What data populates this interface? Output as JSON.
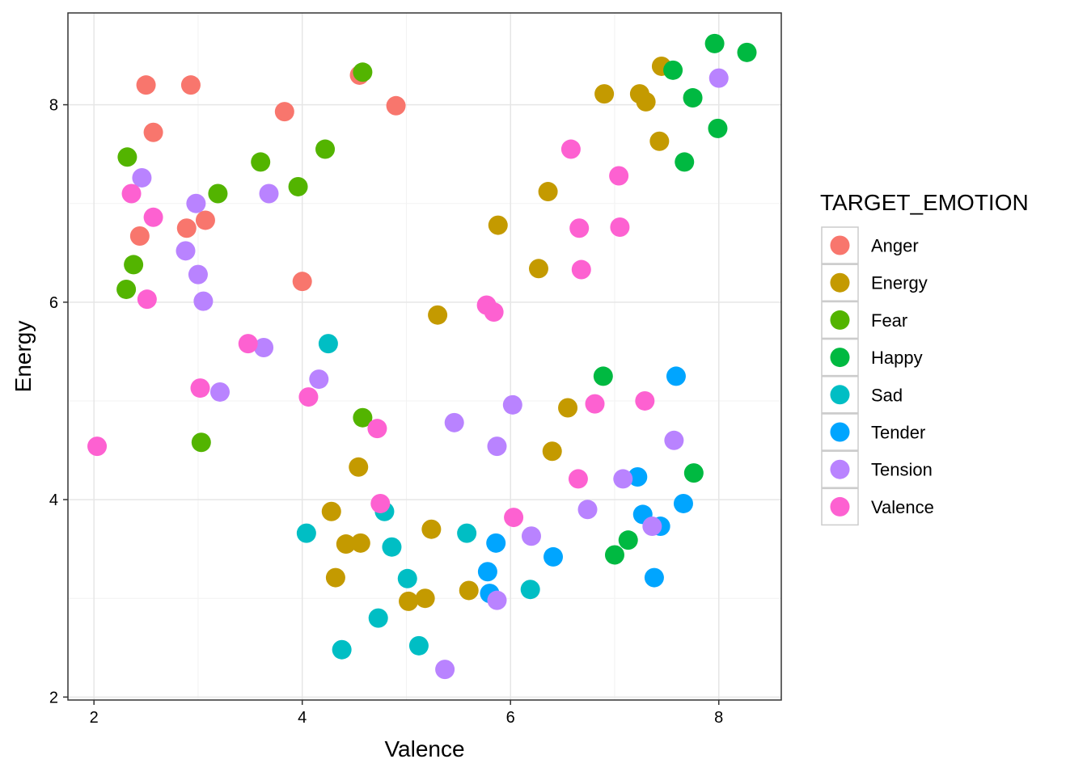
{
  "chart_data": {
    "type": "scatter",
    "xlabel": "Valence",
    "ylabel": "Energy",
    "xlim": [
      1.75,
      8.6
    ],
    "ylim": [
      1.97,
      8.93
    ],
    "x_ticks": [
      2,
      4,
      6,
      8
    ],
    "y_ticks": [
      2,
      4,
      6,
      8
    ],
    "x_minor_ticks": [
      3,
      5,
      7
    ],
    "y_minor_ticks": [
      3,
      5,
      7
    ],
    "grid": true,
    "legend": {
      "title": "TARGET_EMOTION",
      "placement": "right"
    },
    "series": [
      {
        "name": "Anger",
        "color": "#F8766D",
        "points": [
          [
            2.5,
            8.2
          ],
          [
            2.93,
            8.2
          ],
          [
            2.57,
            7.72
          ],
          [
            3.83,
            7.93
          ],
          [
            4.55,
            8.3
          ],
          [
            4.9,
            7.99
          ],
          [
            2.89,
            6.75
          ],
          [
            3.07,
            6.83
          ],
          [
            2.44,
            6.67
          ],
          [
            4.0,
            6.21
          ]
        ]
      },
      {
        "name": "Energy",
        "color": "#C49A00",
        "points": [
          [
            6.9,
            8.11
          ],
          [
            7.24,
            8.11
          ],
          [
            7.3,
            8.03
          ],
          [
            7.45,
            8.39
          ],
          [
            7.43,
            7.63
          ],
          [
            6.36,
            7.12
          ],
          [
            5.88,
            6.78
          ],
          [
            6.27,
            6.34
          ],
          [
            5.3,
            5.87
          ],
          [
            6.55,
            4.93
          ],
          [
            6.4,
            4.49
          ],
          [
            4.54,
            4.33
          ],
          [
            4.28,
            3.88
          ],
          [
            5.24,
            3.7
          ],
          [
            4.42,
            3.55
          ],
          [
            4.56,
            3.56
          ],
          [
            4.32,
            3.21
          ],
          [
            5.02,
            2.97
          ],
          [
            5.18,
            3.0
          ],
          [
            5.6,
            3.08
          ]
        ]
      },
      {
        "name": "Fear",
        "color": "#53B400",
        "points": [
          [
            4.58,
            8.33
          ],
          [
            4.22,
            7.55
          ],
          [
            3.6,
            7.42
          ],
          [
            3.96,
            7.17
          ],
          [
            3.19,
            7.1
          ],
          [
            2.32,
            7.47
          ],
          [
            2.38,
            6.38
          ],
          [
            2.31,
            6.13
          ],
          [
            4.58,
            4.83
          ],
          [
            3.03,
            4.58
          ]
        ]
      },
      {
        "name": "Happy",
        "color": "#00B941",
        "points": [
          [
            7.96,
            8.62
          ],
          [
            8.27,
            8.53
          ],
          [
            7.56,
            8.35
          ],
          [
            7.75,
            8.07
          ],
          [
            7.99,
            7.76
          ],
          [
            7.67,
            7.42
          ],
          [
            6.89,
            5.25
          ],
          [
            7.76,
            4.27
          ],
          [
            7.13,
            3.59
          ],
          [
            7.0,
            3.44
          ]
        ]
      },
      {
        "name": "Sad",
        "color": "#00BEC4",
        "points": [
          [
            4.25,
            5.58
          ],
          [
            4.79,
            3.88
          ],
          [
            4.04,
            3.66
          ],
          [
            5.58,
            3.66
          ],
          [
            4.86,
            3.52
          ],
          [
            5.01,
            3.2
          ],
          [
            6.19,
            3.09
          ],
          [
            4.73,
            2.8
          ],
          [
            5.12,
            2.52
          ],
          [
            4.38,
            2.48
          ]
        ]
      },
      {
        "name": "Tender",
        "color": "#00A5FF",
        "points": [
          [
            7.59,
            5.25
          ],
          [
            7.22,
            4.23
          ],
          [
            7.66,
            3.96
          ],
          [
            7.27,
            3.85
          ],
          [
            7.44,
            3.73
          ],
          [
            5.86,
            3.56
          ],
          [
            6.41,
            3.42
          ],
          [
            5.78,
            3.27
          ],
          [
            5.8,
            3.05
          ],
          [
            7.38,
            3.21
          ]
        ]
      },
      {
        "name": "Tension",
        "color": "#B983FF",
        "points": [
          [
            8.0,
            8.27
          ],
          [
            2.46,
            7.26
          ],
          [
            3.68,
            7.1
          ],
          [
            2.98,
            7.0
          ],
          [
            2.88,
            6.52
          ],
          [
            3.0,
            6.28
          ],
          [
            3.05,
            6.01
          ],
          [
            3.63,
            5.54
          ],
          [
            4.16,
            5.22
          ],
          [
            3.21,
            5.09
          ],
          [
            6.02,
            4.96
          ],
          [
            5.46,
            4.78
          ],
          [
            5.87,
            4.54
          ],
          [
            7.57,
            4.6
          ],
          [
            7.08,
            4.21
          ],
          [
            6.74,
            3.9
          ],
          [
            6.2,
            3.63
          ],
          [
            7.36,
            3.73
          ],
          [
            5.87,
            2.98
          ],
          [
            5.37,
            2.28
          ]
        ]
      },
      {
        "name": "Valence",
        "color": "#FD61D1",
        "points": [
          [
            6.58,
            7.55
          ],
          [
            7.04,
            7.28
          ],
          [
            6.66,
            6.75
          ],
          [
            7.05,
            6.76
          ],
          [
            6.68,
            6.33
          ],
          [
            5.77,
            5.97
          ],
          [
            5.84,
            5.9
          ],
          [
            2.57,
            6.86
          ],
          [
            2.36,
            7.1
          ],
          [
            2.51,
            6.03
          ],
          [
            3.48,
            5.58
          ],
          [
            4.06,
            5.04
          ],
          [
            3.02,
            5.13
          ],
          [
            2.03,
            4.54
          ],
          [
            4.72,
            4.72
          ],
          [
            6.81,
            4.97
          ],
          [
            7.29,
            5.0
          ],
          [
            6.65,
            4.21
          ],
          [
            4.75,
            3.96
          ],
          [
            6.03,
            3.82
          ]
        ]
      }
    ]
  }
}
